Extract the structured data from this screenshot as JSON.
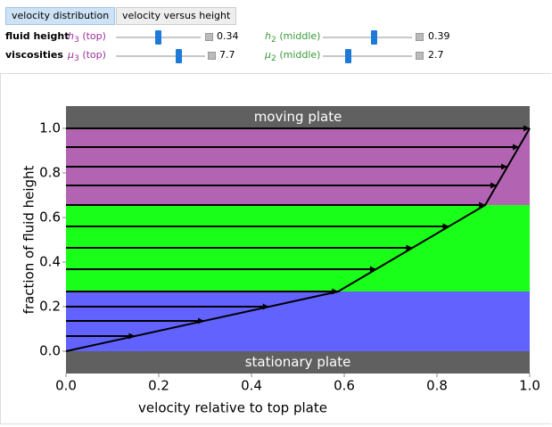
{
  "tabs": [
    "velocity distribution",
    "velocity versus height"
  ],
  "controls": [
    {
      "label": "fluid height",
      "params": [
        {
          "symbol": "h",
          "sub": "3",
          "label": "(top)",
          "value": 0.34
        },
        {
          "symbol": "h",
          "sub": "2",
          "label": "(middle)",
          "value": 0.39
        }
      ]
    },
    {
      "label": "viscosities",
      "params": [
        {
          "symbol": "μ",
          "sub": "3",
          "label": "(top)",
          "value": 7.7
        },
        {
          "symbol": "μ",
          "sub": "2",
          "label": "(middle)",
          "value": 2.7
        }
      ]
    }
  ],
  "chart_data": {
    "type": "flow",
    "xlabel": "velocity relative to top plate",
    "ylabel": "fraction of fluid height",
    "xlim": [
      0,
      1
    ],
    "ylim": [
      -0.1,
      1.1
    ],
    "xticks": [
      {
        "value": 0,
        "label": "0.0"
      },
      0.2,
      0.4,
      0.6,
      0.8,
      {
        "value": 1,
        "label": "1.0"
      }
    ],
    "yticks": [
      {
        "value": 0,
        "label": "0.0"
      },
      0.2,
      0.4,
      0.6,
      0.8,
      {
        "value": 1,
        "label": "1.0"
      }
    ],
    "plates": {
      "top_label": "moving plate",
      "bottom_label": "stationary plate",
      "color": "#606060"
    },
    "layers": [
      {
        "top": 0.268,
        "color": "#6262ff"
      },
      {
        "top": 0.656,
        "color": "#1aff1a"
      },
      {
        "top": 1,
        "color": "#b264b2"
      }
    ],
    "profile": {
      "x": [
        0,
        0.587,
        0.904,
        1
      ],
      "y": [
        0,
        0.268,
        0.656,
        1
      ]
    },
    "arrows": {
      "y": [
        0.068,
        0.136,
        0.2,
        0.268,
        0.368,
        0.464,
        0.56,
        0.656,
        0.744,
        0.828,
        0.916,
        1
      ],
      "x": [
        0.149,
        0.298,
        0.438,
        0.587,
        0.669,
        0.747,
        0.826,
        0.904,
        0.929,
        0.952,
        0.977,
        1
      ]
    }
  }
}
